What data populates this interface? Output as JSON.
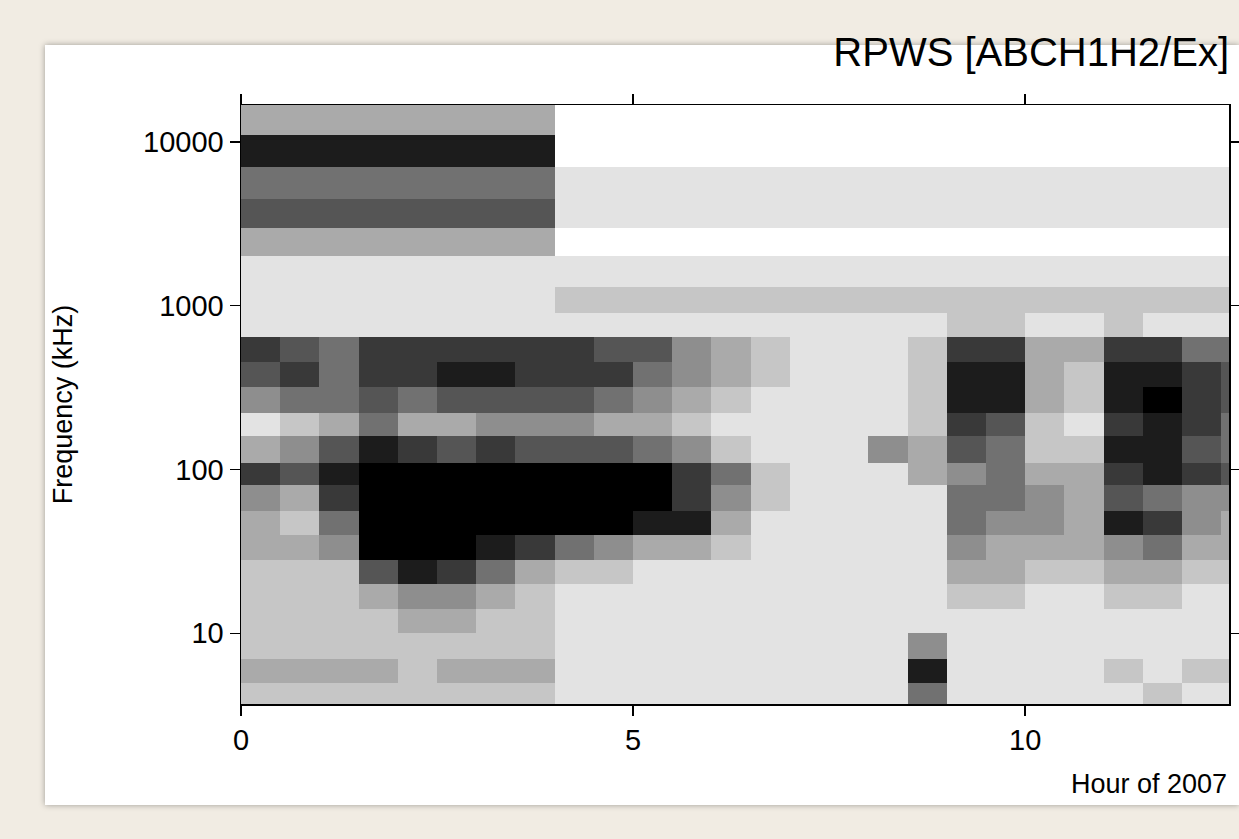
{
  "chart_data": {
    "type": "heatmap",
    "title": "RPWS [ABCH1H2/Ex]",
    "x_label": "Hour of 2007",
    "y_label": "Frequency (kHz)",
    "x_bins": [
      0,
      0.5,
      1,
      1.5,
      2,
      2.5,
      3,
      3.5,
      4,
      4.5,
      5,
      5.5,
      6,
      6.5,
      7,
      7.5,
      8,
      8.5,
      9,
      9.5,
      10,
      10.5,
      11,
      11.5,
      12,
      12.5,
      12.6
    ],
    "y_bins": [
      3.7,
      5,
      7,
      10,
      14,
      20,
      28,
      40,
      56,
      80,
      110,
      160,
      220,
      320,
      450,
      640,
      900,
      1300,
      2000,
      3000,
      4500,
      7000,
      11000,
      16800
    ],
    "cells": [
      [
        2,
        2,
        2,
        2,
        2,
        2,
        2,
        2,
        1,
        1,
        1,
        1,
        1,
        1,
        1,
        1,
        1,
        5,
        1,
        1,
        1,
        1,
        1,
        2,
        1,
        1
      ],
      [
        3,
        3,
        3,
        3,
        2,
        3,
        3,
        3,
        1,
        1,
        1,
        1,
        1,
        1,
        1,
        1,
        1,
        8,
        1,
        1,
        1,
        1,
        2,
        1,
        2,
        2
      ],
      [
        2,
        2,
        2,
        2,
        2,
        2,
        2,
        2,
        1,
        1,
        1,
        1,
        1,
        1,
        1,
        1,
        1,
        4,
        1,
        1,
        1,
        1,
        1,
        1,
        1,
        1
      ],
      [
        2,
        2,
        2,
        2,
        3,
        3,
        2,
        2,
        1,
        1,
        1,
        1,
        1,
        1,
        1,
        1,
        1,
        1,
        1,
        1,
        1,
        1,
        1,
        1,
        1,
        1
      ],
      [
        2,
        2,
        2,
        3,
        4,
        4,
        3,
        2,
        1,
        1,
        1,
        1,
        1,
        1,
        1,
        1,
        1,
        1,
        2,
        2,
        1,
        1,
        2,
        2,
        1,
        1
      ],
      [
        2,
        2,
        2,
        6,
        8,
        7,
        5,
        3,
        2,
        2,
        1,
        1,
        1,
        1,
        1,
        1,
        1,
        1,
        3,
        3,
        2,
        2,
        3,
        3,
        2,
        2
      ],
      [
        3,
        3,
        4,
        9,
        9,
        9,
        8,
        7,
        5,
        4,
        3,
        3,
        2,
        1,
        1,
        1,
        1,
        1,
        4,
        3,
        3,
        3,
        4,
        5,
        3,
        3
      ],
      [
        3,
        2,
        5,
        9,
        9,
        9,
        9,
        9,
        9,
        9,
        8,
        8,
        3,
        1,
        1,
        1,
        1,
        1,
        5,
        4,
        4,
        3,
        8,
        7,
        4,
        3
      ],
      [
        4,
        3,
        7,
        9,
        9,
        9,
        9,
        9,
        9,
        9,
        9,
        7,
        4,
        2,
        1,
        1,
        1,
        1,
        5,
        5,
        4,
        3,
        6,
        5,
        4,
        4
      ],
      [
        7,
        6,
        8,
        9,
        9,
        9,
        9,
        9,
        9,
        9,
        9,
        7,
        5,
        2,
        1,
        1,
        1,
        3,
        4,
        5,
        3,
        3,
        7,
        8,
        7,
        6
      ],
      [
        3,
        4,
        6,
        8,
        7,
        6,
        7,
        6,
        6,
        6,
        5,
        4,
        2,
        1,
        1,
        1,
        4,
        3,
        6,
        5,
        2,
        2,
        8,
        8,
        6,
        5
      ],
      [
        1,
        2,
        3,
        5,
        3,
        3,
        4,
        4,
        4,
        3,
        3,
        2,
        1,
        1,
        1,
        1,
        1,
        2,
        7,
        6,
        2,
        1,
        7,
        8,
        7,
        5
      ],
      [
        4,
        5,
        5,
        6,
        5,
        6,
        6,
        6,
        6,
        5,
        4,
        3,
        2,
        1,
        1,
        1,
        1,
        2,
        8,
        8,
        3,
        2,
        8,
        9,
        7,
        6
      ],
      [
        6,
        7,
        5,
        7,
        7,
        8,
        8,
        7,
        7,
        7,
        5,
        4,
        3,
        2,
        1,
        1,
        1,
        2,
        8,
        8,
        3,
        2,
        8,
        8,
        7,
        6
      ],
      [
        7,
        6,
        5,
        7,
        7,
        7,
        7,
        7,
        7,
        6,
        6,
        4,
        3,
        2,
        1,
        1,
        1,
        2,
        7,
        7,
        3,
        3,
        7,
        7,
        5,
        5
      ],
      [
        1,
        1,
        1,
        1,
        1,
        1,
        1,
        1,
        1,
        1,
        1,
        1,
        1,
        1,
        1,
        1,
        1,
        1,
        2,
        2,
        1,
        1,
        2,
        1,
        1,
        1
      ],
      [
        1,
        1,
        1,
        1,
        1,
        1,
        1,
        1,
        2,
        2,
        2,
        2,
        2,
        2,
        2,
        2,
        2,
        2,
        2,
        2,
        2,
        2,
        2,
        2,
        2,
        2
      ],
      [
        1,
        1,
        1,
        1,
        1,
        1,
        1,
        1,
        1,
        1,
        1,
        1,
        1,
        1,
        1,
        1,
        1,
        1,
        1,
        1,
        1,
        1,
        1,
        1,
        1,
        1
      ],
      [
        3,
        3,
        3,
        3,
        3,
        3,
        3,
        3,
        0,
        0,
        0,
        0,
        0,
        0,
        0,
        0,
        0,
        0,
        0,
        0,
        0,
        0,
        0,
        0,
        0,
        0
      ],
      [
        6,
        6,
        6,
        6,
        6,
        6,
        6,
        6,
        1,
        1,
        1,
        1,
        1,
        1,
        1,
        1,
        1,
        1,
        1,
        1,
        1,
        1,
        1,
        1,
        1,
        1
      ],
      [
        5,
        5,
        5,
        5,
        5,
        5,
        5,
        5,
        1,
        1,
        1,
        1,
        1,
        1,
        1,
        1,
        1,
        1,
        1,
        1,
        1,
        1,
        1,
        1,
        1,
        1
      ],
      [
        8,
        8,
        8,
        8,
        8,
        8,
        8,
        8,
        0,
        0,
        0,
        0,
        0,
        0,
        0,
        0,
        0,
        0,
        0,
        0,
        0,
        0,
        0,
        0,
        0,
        0
      ],
      [
        3,
        3,
        3,
        3,
        3,
        3,
        3,
        3,
        0,
        0,
        0,
        0,
        0,
        0,
        0,
        0,
        0,
        0,
        0,
        0,
        0,
        0,
        0,
        0,
        0,
        0
      ]
    ],
    "zlim": [
      0,
      9
    ],
    "color": "#000000",
    "xlim": [
      0,
      12.6
    ],
    "ylim": [
      3.7,
      16800
    ],
    "xticks": [
      0,
      5,
      10
    ],
    "yticks": [
      10,
      100,
      1000,
      10000
    ],
    "log": "y",
    "grid": false
  }
}
